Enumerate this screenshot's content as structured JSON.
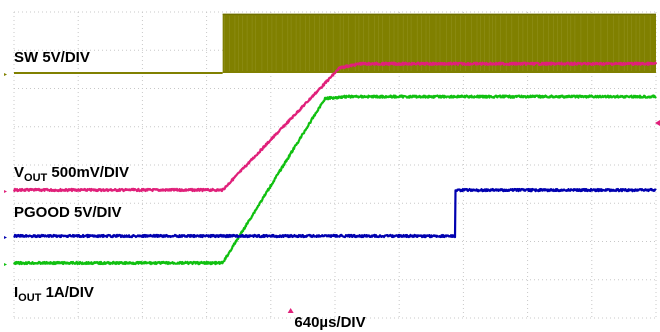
{
  "chart_data": {
    "type": "line",
    "title": "",
    "xlabel": "640µs/DIV",
    "x_units": "µs",
    "x_per_div_us": 640,
    "x_divisions": 10,
    "y_divisions": 8,
    "grid": true,
    "x_range_us": [
      0,
      6400
    ],
    "channels": [
      {
        "key": "sw",
        "label_main": "SW 5V/DIV",
        "label_sub": "",
        "label_tail": "",
        "color": "#808000",
        "scale": "5V/DIV",
        "description_points_us_div": [
          [
            0,
            0
          ],
          [
            2080,
            0
          ],
          [
            2080,
            1.55
          ],
          [
            6400,
            1.55
          ]
        ],
        "switching_after_us": 2080
      },
      {
        "key": "vout",
        "label_main": "V",
        "label_sub": "OUT",
        "label_tail": " 500mV/DIV",
        "color": "#e0207a",
        "scale": "500mV/DIV",
        "description_points_us_div": [
          [
            0,
            0
          ],
          [
            2080,
            0
          ],
          [
            3250,
            3.2
          ],
          [
            3450,
            3.3
          ],
          [
            6400,
            3.3
          ]
        ]
      },
      {
        "key": "pgood",
        "label_main": "PGOOD 5V/DIV",
        "label_sub": "",
        "label_tail": "",
        "color": "#0000b0",
        "scale": "5V/DIV",
        "description_points_us_div": [
          [
            0,
            0
          ],
          [
            4400,
            0
          ],
          [
            4400,
            1.2
          ],
          [
            6400,
            1.2
          ]
        ]
      },
      {
        "key": "iout",
        "label_main": "I",
        "label_sub": "OUT",
        "label_tail": " 1A/DIV",
        "color": "#10c010",
        "scale": "1A/DIV",
        "description_points_us_div": [
          [
            0,
            0
          ],
          [
            2080,
            0
          ],
          [
            3100,
            4.3
          ],
          [
            3300,
            4.35
          ],
          [
            6400,
            4.35
          ]
        ]
      }
    ]
  }
}
